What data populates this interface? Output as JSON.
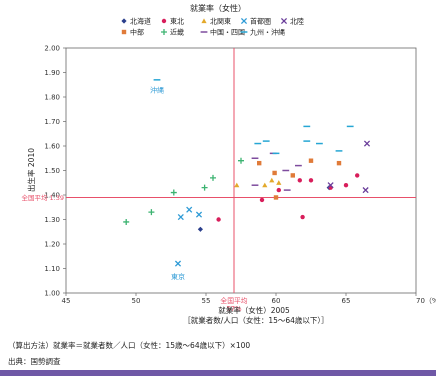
{
  "colors": {
    "reference": "#e8506a",
    "bottom_bar": "#6f58a6"
  },
  "footer": {
    "method": "（算出方法）就業率＝就業者数／人口（女性：15歳～64歳以下）×100",
    "source": "出典：国勢調査"
  },
  "chart_data": {
    "type": "scatter",
    "title": "就業率（女性）",
    "xlabel": "就業率（女性）2005",
    "xlabel_sub": "［就業者数/人口（女性：15～64歳以下）］",
    "ylabel": "出生率 2010",
    "xlim": [
      45,
      70
    ],
    "ylim": [
      1.0,
      2.0
    ],
    "x_ticks": [
      45,
      50,
      55,
      60,
      65,
      70
    ],
    "x_tick_labels": [
      "45",
      "50",
      "55",
      "60",
      "65",
      "70（%）"
    ],
    "y_ticks": [
      1.0,
      1.1,
      1.2,
      1.3,
      1.4,
      1.5,
      1.6,
      1.7,
      1.8,
      1.9,
      2.0
    ],
    "y_tick_labels": [
      "1.00",
      "1.10",
      "1.20",
      "1.30",
      "1.40",
      "1.50",
      "1.60",
      "1.70",
      "1.80",
      "1.90",
      "2.00"
    ],
    "legend": {
      "position": "top",
      "rows": [
        [
          "北海道",
          "東北",
          "北関東",
          "首都圏",
          "北陸"
        ],
        [
          "中部",
          "近畿",
          "中国・四国",
          "九州・沖縄"
        ]
      ]
    },
    "reference_lines": {
      "x": {
        "value": 57,
        "label": "全国平均",
        "value_label": "57%"
      },
      "y": {
        "value": 1.39,
        "label": "全国平均 1.39"
      }
    },
    "annotations": [
      {
        "text": "沖縄",
        "x": 51.5,
        "y": 1.83
      },
      {
        "text": "東京",
        "x": 53.0,
        "y": 1.07
      }
    ],
    "series": [
      {
        "name": "北海道",
        "marker": "diamond",
        "color": "#2b3f8c",
        "points": [
          [
            54.6,
            1.26
          ],
          [
            63.8,
            1.43
          ]
        ]
      },
      {
        "name": "東北",
        "marker": "circle",
        "color": "#d81e5b",
        "points": [
          [
            55.9,
            1.3
          ],
          [
            59.0,
            1.38
          ],
          [
            60.2,
            1.42
          ],
          [
            61.7,
            1.46
          ],
          [
            61.9,
            1.31
          ],
          [
            62.5,
            1.46
          ],
          [
            63.9,
            1.43
          ],
          [
            65.0,
            1.44
          ],
          [
            65.8,
            1.48
          ]
        ]
      },
      {
        "name": "北関東",
        "marker": "triangle",
        "color": "#e3a92b",
        "points": [
          [
            57.2,
            1.44
          ],
          [
            59.2,
            1.44
          ],
          [
            59.7,
            1.46
          ],
          [
            60.2,
            1.45
          ]
        ]
      },
      {
        "name": "首都圏",
        "marker": "x",
        "color": "#2f9bd6",
        "points": [
          [
            53.0,
            1.12
          ],
          [
            53.2,
            1.31
          ],
          [
            53.8,
            1.34
          ],
          [
            54.5,
            1.32
          ]
        ]
      },
      {
        "name": "北陸",
        "marker": "x",
        "color": "#6a3d9a",
        "points": [
          [
            63.9,
            1.44
          ],
          [
            66.4,
            1.42
          ],
          [
            66.5,
            1.61
          ]
        ]
      },
      {
        "name": "中部",
        "marker": "square",
        "color": "#e07b39",
        "points": [
          [
            58.8,
            1.53
          ],
          [
            59.9,
            1.49
          ],
          [
            61.2,
            1.48
          ],
          [
            62.5,
            1.54
          ],
          [
            64.5,
            1.53
          ],
          [
            60.0,
            1.39
          ]
        ]
      },
      {
        "name": "近畿",
        "marker": "plus",
        "color": "#3cb371",
        "points": [
          [
            49.3,
            1.29
          ],
          [
            51.1,
            1.33
          ],
          [
            52.7,
            1.41
          ],
          [
            54.9,
            1.43
          ],
          [
            55.5,
            1.47
          ],
          [
            57.5,
            1.54
          ]
        ]
      },
      {
        "name": "中国・四国",
        "marker": "dash",
        "color": "#7e4c9e",
        "points": [
          [
            58.5,
            1.55
          ],
          [
            59.8,
            1.57
          ],
          [
            60.7,
            1.5
          ],
          [
            61.6,
            1.52
          ],
          [
            58.5,
            1.44
          ],
          [
            60.8,
            1.42
          ]
        ]
      },
      {
        "name": "九州・沖縄",
        "marker": "dash",
        "color": "#26a6d4",
        "points": [
          [
            51.5,
            1.87
          ],
          [
            58.7,
            1.61
          ],
          [
            59.3,
            1.62
          ],
          [
            60.0,
            1.57
          ],
          [
            62.2,
            1.68
          ],
          [
            62.2,
            1.62
          ],
          [
            63.1,
            1.61
          ],
          [
            64.5,
            1.58
          ],
          [
            65.3,
            1.68
          ]
        ]
      }
    ]
  }
}
